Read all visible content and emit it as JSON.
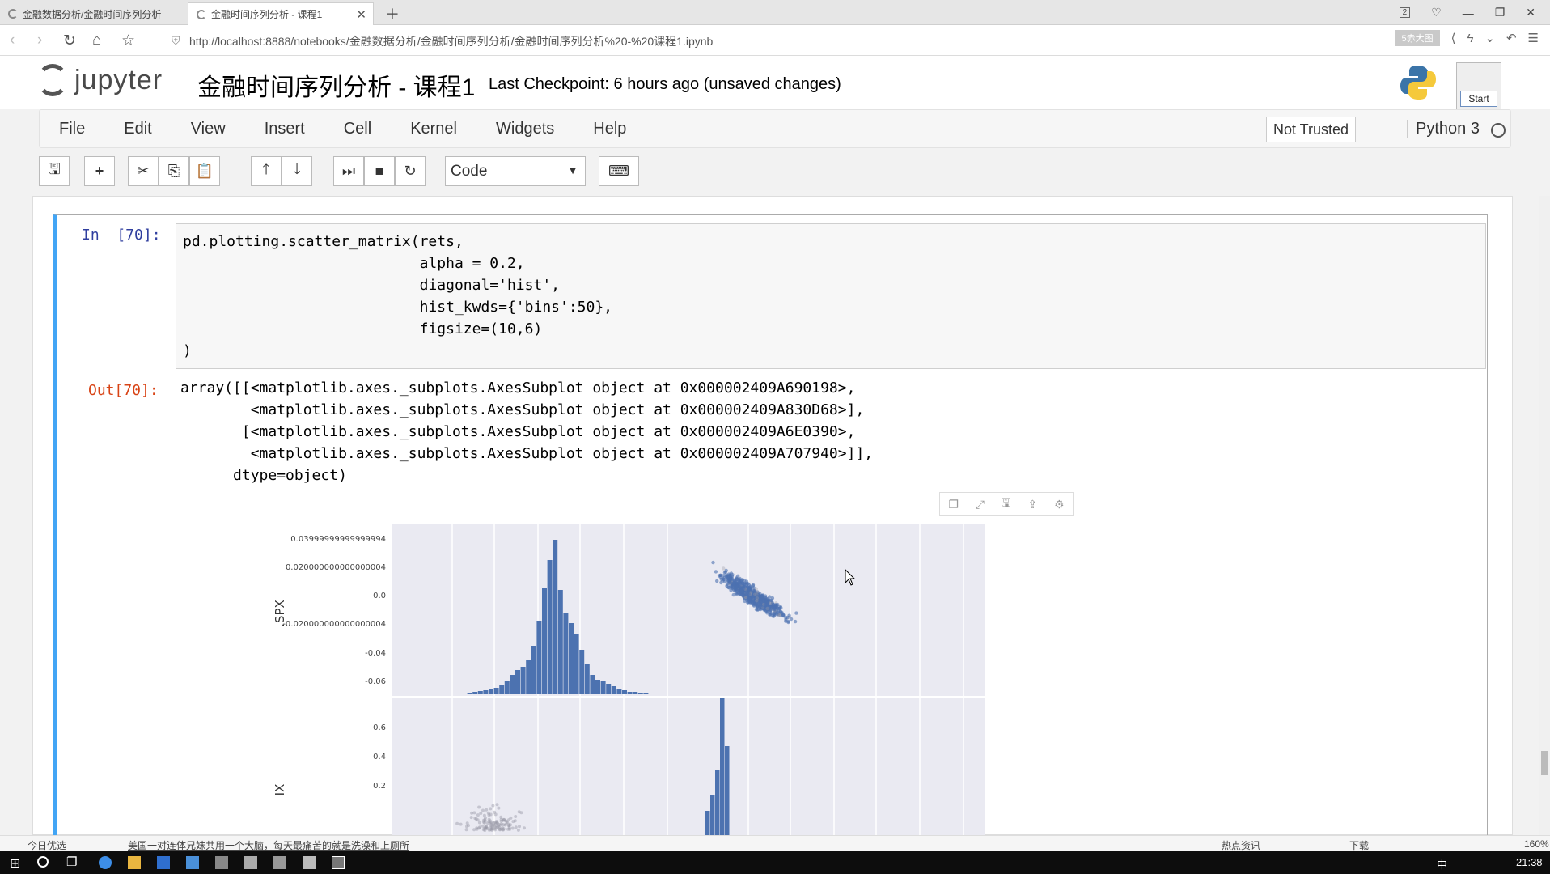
{
  "browser": {
    "tabs": [
      {
        "label": "金融数据分析/金融时间序列分析"
      },
      {
        "label": "金融时间序列分析 - 课程1"
      }
    ],
    "url": "http://localhost:8888/notebooks/金融数据分析/金融时间序列分析/金融时间序列分析%20-%20课程1.ipynb",
    "ext_badge": "5赤大图",
    "page_count": "2"
  },
  "notebook": {
    "logo_text": "jupyter",
    "title": "金融时间序列分析 - 课程1",
    "checkpoint": "Last Checkpoint: 6 hours ago (unsaved changes)",
    "start_label": "Start",
    "menu": [
      "File",
      "Edit",
      "View",
      "Insert",
      "Cell",
      "Kernel",
      "Widgets",
      "Help"
    ],
    "trusted": "Not Trusted",
    "kernel": "Python 3",
    "cell_type": "Code"
  },
  "cell": {
    "in_prompt": "In  [70]:",
    "out_prompt": "Out[70]:",
    "code": "pd.plotting.scatter_matrix(rets,\n                           alpha = 0.2,\n                           diagonal='hist',\n                           hist_kwds={'bins':50},\n                           figsize=(10,6)\n)",
    "output": "array([[<matplotlib.axes._subplots.AxesSubplot object at 0x000002409A690198>,\n        <matplotlib.axes._subplots.AxesSubplot object at 0x000002409A830D68>],\n       [<matplotlib.axes._subplots.AxesSubplot object at 0x000002409A6E0390>,\n        <matplotlib.axes._subplots.AxesSubplot object at 0x000002409A707940>]],\n      dtype=object)"
  },
  "chart_data": {
    "type": "scatter",
    "ylabel_top": ".SPX",
    "ylabel_bottom": "IX",
    "ytick_labels_top": [
      "0.03999999999999994",
      "0.020000000000000004",
      "0.0",
      "-0.020000000000000004",
      "-0.04",
      "-0.06"
    ],
    "ytick_labels_bottom": [
      "0.6",
      "0.4",
      "0.2"
    ],
    "grid": true,
    "point_color": "#4c72b0"
  },
  "statusbar": {
    "left": "今日优选",
    "news": "美国一对连体兄妹共用一个大脑，每天最痛苦的就是洗澡和上厕所",
    "hot": "热点资讯",
    "download": "下载",
    "zoom": "160%"
  },
  "taskbar": {
    "time": "21:38",
    "lang": "中"
  }
}
